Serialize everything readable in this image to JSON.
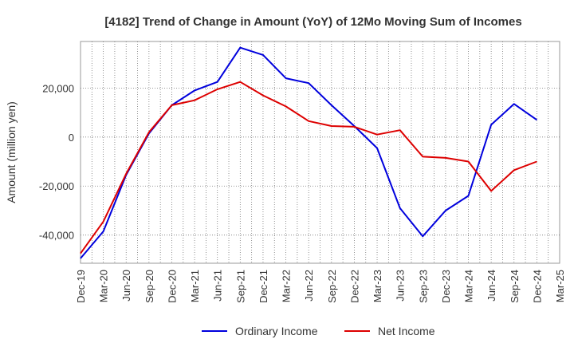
{
  "chart_data": {
    "type": "line",
    "title": "[4182]  Trend of Change in Amount (YoY) of 12Mo Moving Sum of Incomes",
    "xlabel": "",
    "ylabel": "Amount (million yen)",
    "categories": [
      "Dec-19",
      "Mar-20",
      "Jun-20",
      "Sep-20",
      "Dec-20",
      "Mar-21",
      "Jun-21",
      "Sep-21",
      "Dec-21",
      "Mar-22",
      "Jun-22",
      "Sep-22",
      "Dec-22",
      "Mar-23",
      "Jun-23",
      "Sep-23",
      "Dec-23",
      "Mar-24",
      "Jun-24",
      "Sep-24",
      "Dec-24",
      "Mar-25"
    ],
    "y_ticks": [
      -40000,
      -20000,
      0,
      20000
    ],
    "y_tick_labels": [
      "-40,000",
      "-20,000",
      "0",
      "20,000"
    ],
    "ylim": [
      -51500,
      39000
    ],
    "grid": true,
    "legend_position": "bottom-center",
    "series": [
      {
        "name": "Ordinary Income",
        "color": "#0000dd",
        "values": [
          -49500,
          -38500,
          -15500,
          1500,
          13000,
          19000,
          22500,
          36500,
          33500,
          24000,
          22000,
          13000,
          4500,
          -4500,
          -29000,
          -40500,
          -30000,
          -24000,
          5000,
          13500,
          7000,
          null
        ]
      },
      {
        "name": "Net Income",
        "color": "#dd0000",
        "values": [
          -47500,
          -34500,
          -15000,
          2000,
          13000,
          15000,
          19500,
          22500,
          17000,
          12500,
          6500,
          4500,
          4200,
          1000,
          2800,
          -8000,
          -8500,
          -10000,
          -22000,
          -13500,
          -10000,
          null
        ]
      }
    ]
  }
}
